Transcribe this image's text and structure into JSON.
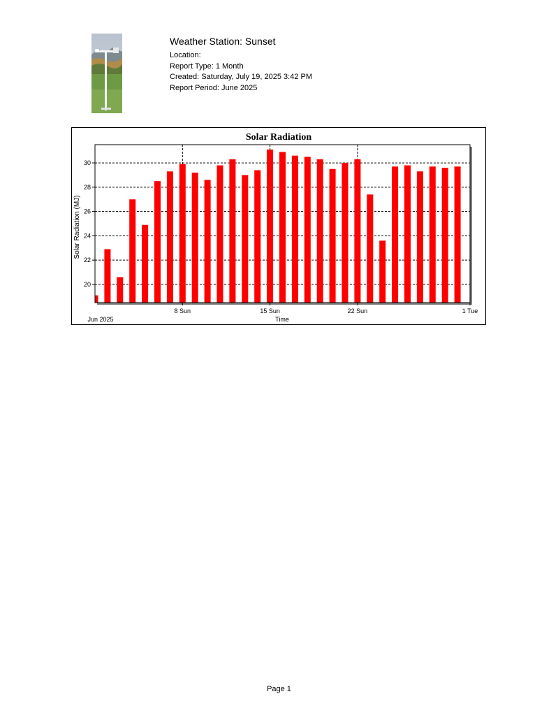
{
  "header": {
    "station_title": "Weather Station: Sunset",
    "location": "Location:",
    "report_type": "Report Type: 1 Month",
    "created": "Created: Saturday, July 19, 2025 3:42 PM",
    "report_period": "Report Period: June 2025"
  },
  "photo": {
    "icon": "weather-station-photo"
  },
  "chart_data": {
    "type": "bar",
    "title": "Solar Radiation",
    "xlabel": "Time",
    "ylabel": "Solar Radiation (MJ)",
    "x_start_label": "Jun 2025",
    "x_ticks": [
      {
        "label": "8 Sun",
        "day": 8
      },
      {
        "label": "15 Sun",
        "day": 15
      },
      {
        "label": "22 Sun",
        "day": 22
      },
      {
        "label": "1 Tue",
        "day": 31
      }
    ],
    "y_ticks": [
      20,
      22,
      24,
      26,
      28,
      30
    ],
    "ylim": [
      18.5,
      31.5
    ],
    "xlim": [
      1,
      31
    ],
    "grid": true,
    "bar_color": "#ff0000",
    "categories": [
      1,
      2,
      3,
      4,
      5,
      6,
      7,
      8,
      9,
      10,
      11,
      12,
      13,
      14,
      15,
      16,
      17,
      18,
      19,
      20,
      21,
      22,
      23,
      24,
      25,
      26,
      27,
      28,
      29,
      30
    ],
    "values": [
      19.1,
      22.9,
      20.6,
      27.0,
      24.9,
      28.5,
      29.3,
      29.9,
      29.2,
      28.6,
      29.8,
      30.3,
      29.0,
      29.4,
      31.1,
      30.9,
      30.6,
      30.5,
      30.3,
      29.5,
      30.0,
      30.3,
      27.4,
      23.6,
      29.7,
      29.8,
      29.3,
      29.7,
      29.6,
      29.7
    ]
  },
  "footer": {
    "page": "Page 1"
  }
}
